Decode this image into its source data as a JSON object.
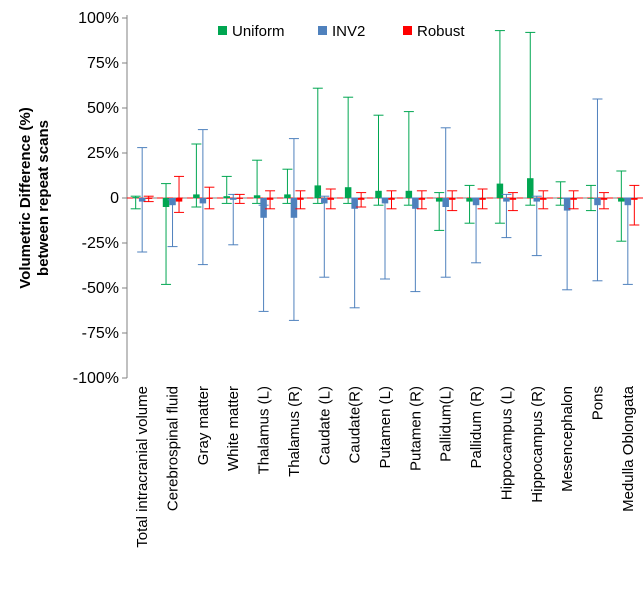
{
  "chart_data": {
    "type": "bar",
    "title": "",
    "xlabel": "",
    "ylabel_lines": [
      "Volumetric  Difference (%)",
      "between repeat scans"
    ],
    "ylim": [
      -100,
      100
    ],
    "yticks": [
      100,
      75,
      50,
      25,
      0,
      -25,
      -50,
      -75,
      -100
    ],
    "ytick_labels": [
      "100%",
      "75%",
      "50%",
      "25%",
      "0",
      "-25%",
      "-50%",
      "-75%",
      "-100%"
    ],
    "legend_position": "top-center",
    "categories": [
      "Total intracranial volume",
      "Cerebrospinal fluid",
      "Gray matter",
      "White matter",
      "Thalamus (L)",
      "Thalamus (R)",
      "Caudate (L)",
      "Caudate(R)",
      "Putamen (L)",
      "Putamen (R)",
      "Pallidum(L)",
      "Pallidum (R)",
      "Hippocampus (L)",
      "Hippocampus (R)",
      "Mesencephalon",
      "Pons",
      "Medulla Oblongata"
    ],
    "series": [
      {
        "name": "Uniform",
        "color": "#00a651",
        "values": [
          0.5,
          -5,
          2,
          1,
          1.5,
          2,
          7,
          6,
          4,
          4,
          -2,
          -2,
          8,
          11,
          0,
          0,
          -2
        ],
        "err_low": [
          -6,
          -48,
          -5,
          -3,
          -3,
          -3,
          -3,
          -3,
          -4,
          -4,
          -18,
          -14,
          -14,
          -4,
          -4,
          -7,
          -24
        ],
        "err_high": [
          1,
          8,
          30,
          12,
          21,
          16,
          61,
          56,
          46,
          48,
          3,
          7,
          93,
          92,
          9,
          7,
          15
        ]
      },
      {
        "name": "INV2",
        "color": "#4f81bd",
        "values": [
          -2,
          -4,
          -3,
          -1,
          -11,
          -11,
          -3,
          -6,
          -3,
          -6,
          -5,
          -4,
          -2,
          -2,
          -7,
          -4,
          -4
        ],
        "err_low": [
          -30,
          -27,
          -37,
          -26,
          -63,
          -68,
          -44,
          -61,
          -45,
          -52,
          -44,
          -36,
          -22,
          -32,
          -51,
          -46,
          -48
        ],
        "err_high": [
          28,
          -1,
          38,
          2,
          -4,
          33,
          1,
          0,
          0,
          0,
          39,
          0,
          2,
          1,
          0,
          55,
          0
        ]
      },
      {
        "name": "Robust",
        "color": "#ff0000",
        "values": [
          -0.5,
          -2,
          -0.5,
          -0.5,
          -1,
          -1,
          -1,
          -1,
          -1,
          -1,
          -1,
          -1,
          -1,
          -1,
          -1,
          -1,
          -1
        ],
        "err_low": [
          -2,
          -8,
          -6,
          -3,
          -6,
          -6,
          -6,
          -5,
          -6,
          -6,
          -7,
          -6,
          -7,
          -6,
          -6,
          -6,
          -15
        ],
        "err_high": [
          1,
          12,
          6,
          2,
          4,
          4,
          5,
          3,
          4,
          4,
          4,
          5,
          3,
          4,
          4,
          3,
          7
        ]
      }
    ]
  }
}
